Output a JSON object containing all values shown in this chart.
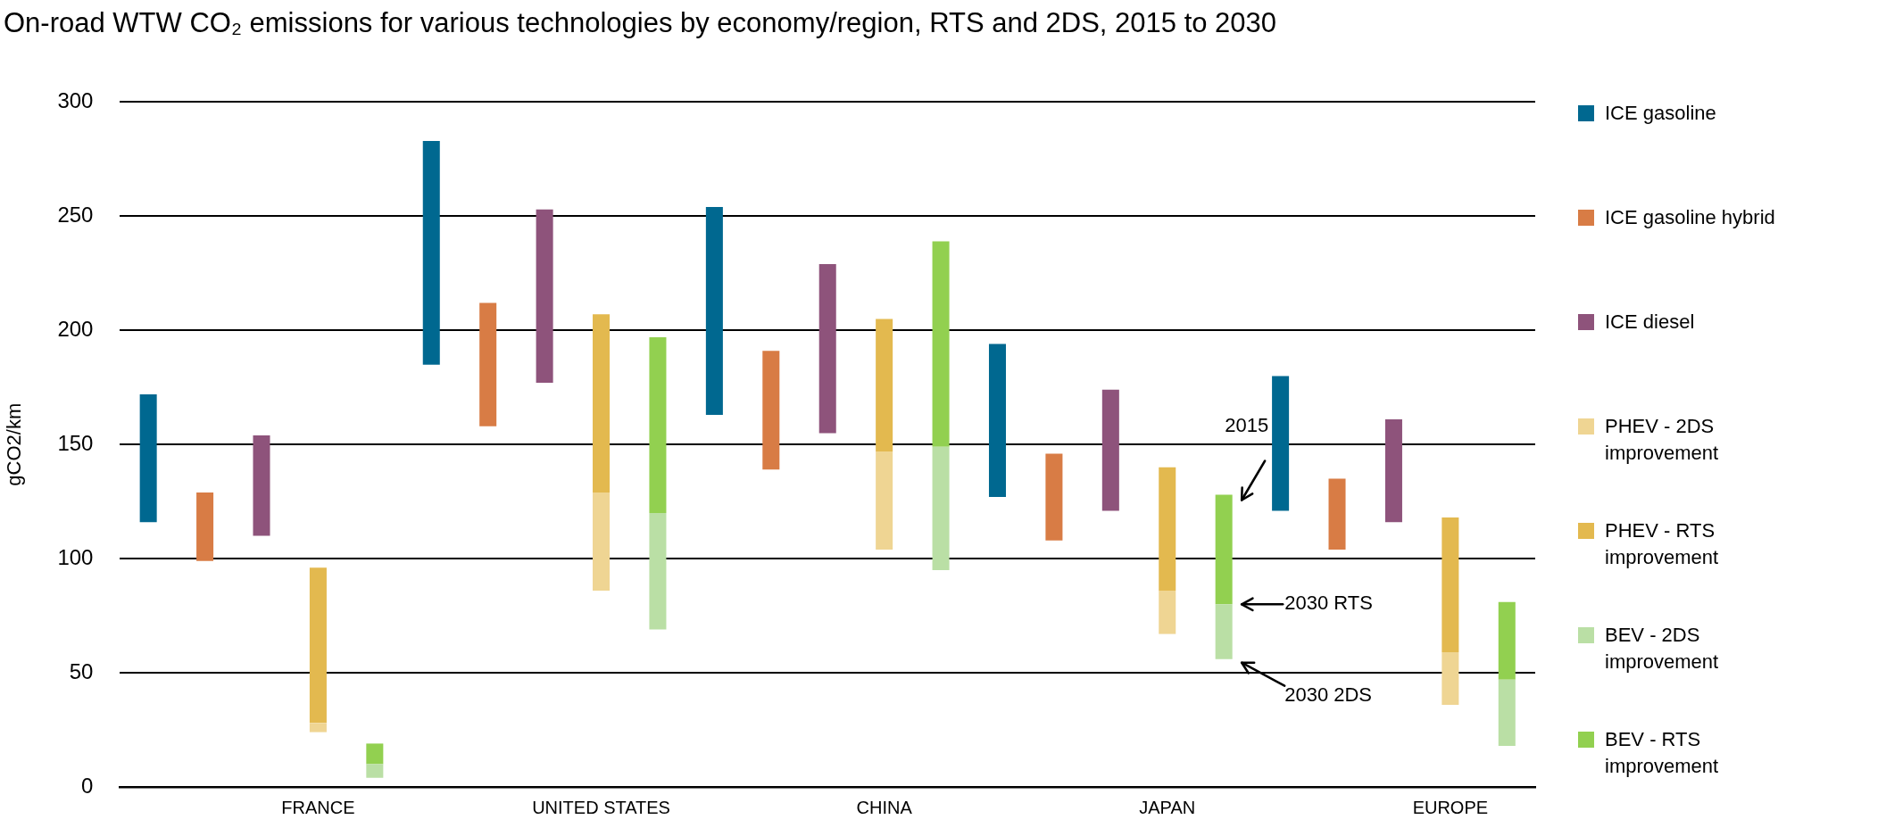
{
  "chart_data": {
    "type": "bar",
    "title": "On-road WTW CO₂ emissions for various technologies by economy/region, RTS and 2DS, 2015 to 2030",
    "ylabel": "gCO2/km",
    "categories": [
      null,
      null,
      null,
      "FRANCE",
      null,
      null,
      null,
      null,
      "UNITED STATES",
      null,
      null,
      null,
      null,
      "CHINA",
      null,
      null,
      null,
      null,
      "JAPAN",
      null,
      null,
      null,
      null,
      "EUROPE",
      null
    ],
    "series": [
      {
        "name": "ICE gasoline",
        "color": "#006890",
        "base": [
          116,
          null,
          null,
          null,
          null,
          185,
          null,
          null,
          null,
          null,
          163,
          null,
          null,
          null,
          null,
          127,
          null,
          null,
          null,
          null,
          121,
          null,
          null,
          null,
          null
        ],
        "values": [
          56,
          null,
          null,
          null,
          null,
          98,
          null,
          null,
          null,
          null,
          91,
          null,
          null,
          null,
          null,
          67,
          null,
          null,
          null,
          null,
          59,
          null,
          null,
          null,
          null
        ]
      },
      {
        "name": "ICE gasoline hybrid",
        "color": "#d87c45",
        "base": [
          null,
          99,
          null,
          null,
          null,
          null,
          158,
          null,
          null,
          null,
          null,
          139,
          null,
          null,
          null,
          null,
          108,
          null,
          null,
          null,
          null,
          104,
          null,
          null,
          null
        ],
        "values": [
          null,
          30,
          null,
          null,
          null,
          null,
          54,
          null,
          null,
          null,
          null,
          52,
          null,
          null,
          null,
          null,
          38,
          null,
          null,
          null,
          null,
          31,
          null,
          null,
          null
        ]
      },
      {
        "name": "ICE diesel",
        "color": "#8e537b",
        "base": [
          null,
          null,
          110,
          null,
          null,
          null,
          null,
          177,
          null,
          null,
          null,
          null,
          155,
          null,
          null,
          null,
          null,
          121,
          null,
          null,
          null,
          null,
          116,
          null,
          null
        ],
        "values": [
          null,
          null,
          44,
          null,
          null,
          null,
          null,
          76,
          null,
          null,
          null,
          null,
          74,
          null,
          null,
          null,
          null,
          53,
          null,
          null,
          null,
          null,
          45,
          null,
          null
        ]
      },
      {
        "name": "PHEV - 2DS improvement",
        "color": "#efd593",
        "base": [
          null,
          null,
          null,
          24,
          null,
          null,
          null,
          null,
          86,
          null,
          null,
          null,
          null,
          104,
          null,
          null,
          null,
          null,
          67,
          null,
          null,
          null,
          null,
          36,
          null
        ],
        "values": [
          null,
          null,
          null,
          4,
          null,
          null,
          null,
          null,
          43,
          null,
          null,
          null,
          null,
          43,
          null,
          null,
          null,
          null,
          19,
          null,
          null,
          null,
          null,
          23,
          null
        ]
      },
      {
        "name": "PHEV - RTS improvement",
        "color": "#e3b94f",
        "base": [
          null,
          null,
          null,
          28,
          null,
          null,
          null,
          null,
          129,
          null,
          null,
          null,
          null,
          147,
          null,
          null,
          null,
          null,
          86,
          null,
          null,
          null,
          null,
          59,
          null
        ],
        "values": [
          null,
          null,
          null,
          68,
          null,
          null,
          null,
          null,
          78,
          null,
          null,
          null,
          null,
          58,
          null,
          null,
          null,
          null,
          54,
          null,
          null,
          null,
          null,
          59,
          null
        ]
      },
      {
        "name": "BEV - 2DS improvement",
        "color": "#badfa5",
        "base": [
          null,
          null,
          null,
          null,
          4,
          null,
          null,
          null,
          null,
          69,
          null,
          null,
          null,
          null,
          95,
          null,
          null,
          null,
          null,
          56,
          null,
          null,
          null,
          null,
          18
        ],
        "values": [
          null,
          null,
          null,
          null,
          6,
          null,
          null,
          null,
          null,
          51,
          null,
          null,
          null,
          null,
          54,
          null,
          null,
          null,
          null,
          24,
          null,
          null,
          null,
          null,
          29
        ]
      },
      {
        "name": "BEV - RTS improvement",
        "color": "#92d050",
        "base": [
          null,
          null,
          null,
          null,
          10,
          null,
          null,
          null,
          null,
          120,
          null,
          null,
          null,
          null,
          149,
          null,
          null,
          null,
          null,
          80,
          null,
          null,
          null,
          null,
          47
        ],
        "values": [
          null,
          null,
          null,
          null,
          9,
          null,
          null,
          null,
          null,
          77,
          null,
          null,
          null,
          null,
          90,
          null,
          null,
          null,
          null,
          48,
          null,
          null,
          null,
          null,
          34
        ]
      }
    ],
    "ylim": [
      0,
      300
    ],
    "yticks": [
      0,
      50,
      100,
      150,
      200,
      250,
      300
    ],
    "grid": "y",
    "legend": "right",
    "annotations": [
      "2015",
      "2030 RTS",
      "2030 2DS"
    ]
  }
}
